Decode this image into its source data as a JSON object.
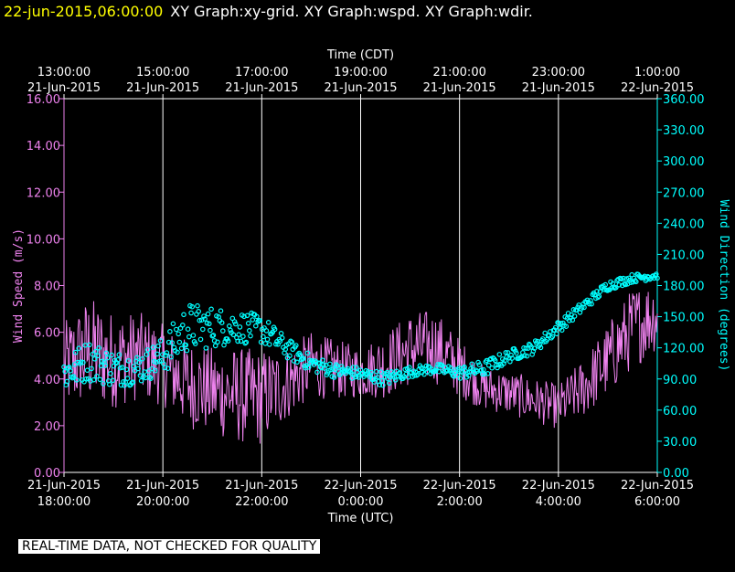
{
  "header": {
    "timestamp": "22-jun-2015,06:00:00",
    "title": "XY Graph:xy-grid.  XY Graph:wspd.  XY Graph:wdir."
  },
  "quality_notice": "REAL-TIME DATA, NOT CHECKED FOR QUALITY",
  "colors": {
    "background": "#000000",
    "speed": "#ee82ee",
    "direction": "#00ffff",
    "grid": "#ffffff",
    "header_time": "#ffff00"
  },
  "chart_data": {
    "type": "line",
    "top_axis": {
      "label": "Time (CDT)",
      "ticks": [
        [
          "13:00:00",
          "21-Jun-2015"
        ],
        [
          "15:00:00",
          "21-Jun-2015"
        ],
        [
          "17:00:00",
          "21-Jun-2015"
        ],
        [
          "19:00:00",
          "21-Jun-2015"
        ],
        [
          "21:00:00",
          "21-Jun-2015"
        ],
        [
          "23:00:00",
          "21-Jun-2015"
        ],
        [
          "1:00:00",
          "22-Jun-2015"
        ]
      ]
    },
    "bottom_axis": {
      "label": "Time (UTC)",
      "ticks": [
        [
          "21-Jun-2015",
          "18:00:00"
        ],
        [
          "21-Jun-2015",
          "20:00:00"
        ],
        [
          "21-Jun-2015",
          "22:00:00"
        ],
        [
          "22-Jun-2015",
          "0:00:00"
        ],
        [
          "22-Jun-2015",
          "2:00:00"
        ],
        [
          "22-Jun-2015",
          "4:00:00"
        ],
        [
          "22-Jun-2015",
          "6:00:00"
        ]
      ],
      "range_hours_utc": [
        18,
        30
      ]
    },
    "left_axis": {
      "label": "Wind Speed (m/s)",
      "range": [
        0,
        16
      ],
      "ticks": [
        "0.00",
        "2.00",
        "4.00",
        "6.00",
        "8.00",
        "10.00",
        "12.00",
        "14.00",
        "16.00"
      ]
    },
    "right_axis": {
      "label": "Wind Direction (degrees)",
      "range": [
        0,
        360
      ],
      "ticks": [
        "0.00",
        "30.00",
        "60.00",
        "90.00",
        "120.00",
        "150.00",
        "180.00",
        "210.00",
        "240.00",
        "270.00",
        "300.00",
        "330.00",
        "360.00"
      ]
    },
    "grid": "vertical",
    "series": [
      {
        "name": "wspd",
        "style": "line",
        "axis": "left",
        "x_hours_utc": [
          18.0,
          18.5,
          19.0,
          19.5,
          20.0,
          20.5,
          21.0,
          21.5,
          22.0,
          22.5,
          23.0,
          23.5,
          24.0,
          24.5,
          25.0,
          25.5,
          26.0,
          26.5,
          27.0,
          27.5,
          28.0,
          28.5,
          29.0,
          29.5,
          30.0
        ],
        "values": [
          4.5,
          5.2,
          4.8,
          5.0,
          4.6,
          3.8,
          3.5,
          3.3,
          3.2,
          3.8,
          4.6,
          4.4,
          4.3,
          4.6,
          5.3,
          5.4,
          4.5,
          3.6,
          3.4,
          3.1,
          2.8,
          3.6,
          4.8,
          6.2,
          6.8
        ],
        "spread": [
          1.2,
          1.5,
          1.3,
          1.2,
          1.1,
          1.2,
          1.2,
          1.3,
          1.3,
          1.0,
          0.9,
          0.8,
          0.7,
          0.9,
          1.0,
          1.0,
          0.8,
          0.6,
          0.6,
          0.6,
          0.6,
          0.8,
          1.0,
          1.1,
          1.0
        ]
      },
      {
        "name": "wdir",
        "style": "markers",
        "axis": "right",
        "x_hours_utc": [
          18.0,
          18.5,
          19.0,
          19.5,
          20.0,
          20.5,
          21.0,
          21.5,
          22.0,
          22.5,
          23.0,
          23.5,
          24.0,
          24.5,
          25.0,
          25.5,
          26.0,
          26.5,
          27.0,
          27.5,
          28.0,
          28.5,
          29.0,
          29.5,
          30.0
        ],
        "values": [
          95,
          108,
          100,
          100,
          112,
          140,
          140,
          140,
          138,
          120,
          105,
          98,
          95,
          90,
          97,
          100,
          96,
          100,
          112,
          120,
          140,
          160,
          180,
          187,
          190
        ],
        "spread": [
          18,
          20,
          18,
          15,
          18,
          24,
          20,
          16,
          14,
          10,
          8,
          7,
          6,
          7,
          5,
          5,
          6,
          8,
          6,
          6,
          6,
          5,
          5,
          4,
          4
        ]
      }
    ]
  }
}
